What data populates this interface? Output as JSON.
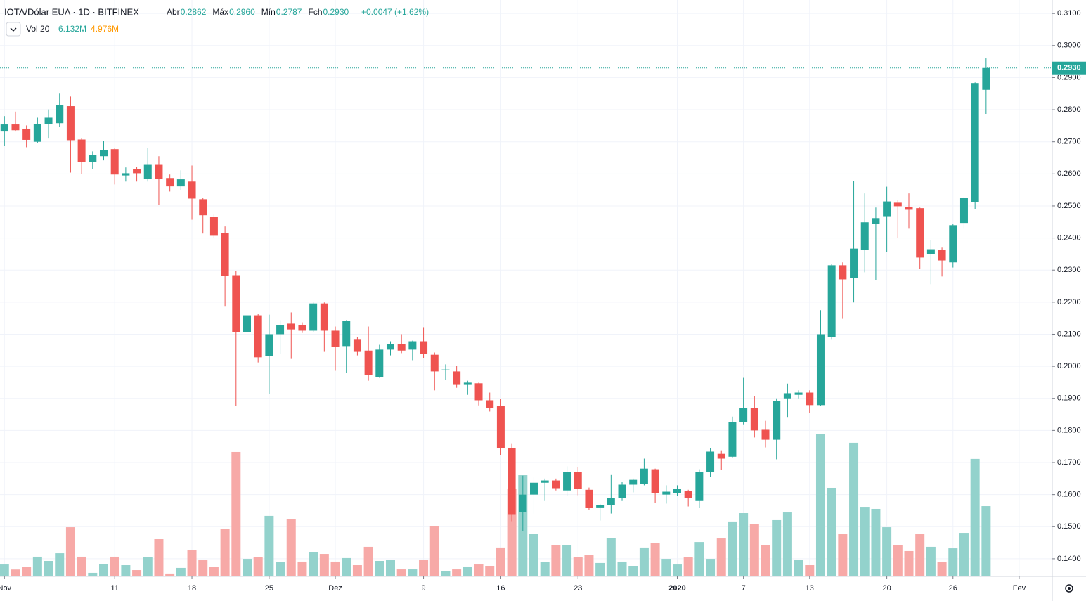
{
  "chart_data": {
    "type": "candlestick",
    "title": "IOTA/Dólar EUA · 1D · BITFINEX",
    "ohlc_header": [
      {
        "name": "Abr",
        "value": "0.2862"
      },
      {
        "name": "Máx",
        "value": "0.2960"
      },
      {
        "name": "Mín",
        "value": "0.2787"
      },
      {
        "name": "Fch",
        "value": "0.2930"
      }
    ],
    "change": "+0.0047 (+1.62%)",
    "volume_legend": {
      "name": "Vol 20",
      "values": [
        {
          "value": 6.132,
          "label": "6.132M",
          "color": "#26a69a"
        },
        {
          "value": 4.976,
          "label": "4.976M",
          "color": "#ff9800"
        }
      ]
    },
    "last_price": {
      "value": 0.293,
      "label": "0.2930"
    },
    "up_color": "#26a69a",
    "down_color": "#ef5350",
    "volume_up_color": "#93d2cc",
    "volume_down_color": "#f7a9a7",
    "open": [
      0.2732,
      0.2754,
      0.2741,
      0.27,
      0.2755,
      0.2758,
      0.2811,
      0.2707,
      0.2637,
      0.2655,
      0.2677,
      0.2595,
      0.2615,
      0.2585,
      0.2628,
      0.2587,
      0.2561,
      0.2576,
      0.2521,
      0.2466,
      0.2416,
      0.2284,
      0.2107,
      0.2159,
      0.2032,
      0.21,
      0.2133,
      0.2129,
      0.2111,
      0.2196,
      0.2111,
      0.2063,
      0.2085,
      0.2049,
      0.1966,
      0.2052,
      0.2069,
      0.2052,
      0.2078,
      0.2036,
      0.1988,
      0.1984,
      0.1942,
      0.1947,
      0.1894,
      0.1876,
      0.1745,
      0.1545,
      0.16,
      0.1637,
      0.1644,
      0.1613,
      0.167,
      0.1615,
      0.156,
      0.1567,
      0.1589,
      0.1631,
      0.1633,
      0.1679,
      0.16,
      0.1604,
      0.1611,
      0.158,
      0.167,
      0.1727,
      0.1718,
      0.1826,
      0.187,
      0.1802,
      0.1771,
      0.19,
      0.1911,
      0.1918,
      0.1879,
      0.2091,
      0.2315,
      0.2275,
      0.2363,
      0.2444,
      0.2468,
      0.251,
      0.2497,
      0.2493,
      0.235,
      0.2363,
      0.2324,
      0.2447,
      0.2512,
      0.2862
    ],
    "high": [
      0.278,
      0.2794,
      0.2751,
      0.2775,
      0.2801,
      0.285,
      0.2841,
      0.2712,
      0.267,
      0.2703,
      0.2681,
      0.262,
      0.2622,
      0.2681,
      0.2655,
      0.2598,
      0.2611,
      0.2626,
      0.2525,
      0.2473,
      0.2436,
      0.2297,
      0.2166,
      0.2164,
      0.2161,
      0.2144,
      0.2168,
      0.2137,
      0.2199,
      0.2199,
      0.2124,
      0.2144,
      0.2091,
      0.2124,
      0.2067,
      0.2078,
      0.21,
      0.208,
      0.2122,
      0.2043,
      0.2006,
      0.2001,
      0.1955,
      0.1949,
      0.1918,
      0.1898,
      0.176,
      0.1659,
      0.1653,
      0.165,
      0.165,
      0.1688,
      0.1686,
      0.1622,
      0.1571,
      0.1661,
      0.164,
      0.165,
      0.1712,
      0.1681,
      0.1629,
      0.1629,
      0.1615,
      0.1679,
      0.1745,
      0.1738,
      0.1843,
      0.1964,
      0.1907,
      0.183,
      0.19,
      0.1946,
      0.1925,
      0.1925,
      0.2175,
      0.2319,
      0.2324,
      0.2578,
      0.2539,
      0.2495,
      0.256,
      0.2519,
      0.2539,
      0.2495,
      0.2394,
      0.237,
      0.2444,
      0.2528,
      0.2885,
      0.296
    ],
    "low": [
      0.2687,
      0.2732,
      0.2683,
      0.2696,
      0.271,
      0.2747,
      0.2604,
      0.26,
      0.2615,
      0.2642,
      0.2567,
      0.2576,
      0.2576,
      0.2576,
      0.2503,
      0.2545,
      0.255,
      0.2457,
      0.2414,
      0.24,
      0.2186,
      0.1876,
      0.2041,
      0.2012,
      0.1914,
      0.2039,
      0.2023,
      0.2104,
      0.2107,
      0.2045,
      0.1986,
      0.1979,
      0.2034,
      0.1955,
      0.1964,
      0.2034,
      0.2041,
      0.2019,
      0.2025,
      0.1925,
      0.1958,
      0.1933,
      0.1911,
      0.1878,
      0.1859,
      0.1723,
      0.1517,
      0.1486,
      0.1541,
      0.158,
      0.1613,
      0.1596,
      0.1598,
      0.1552,
      0.1519,
      0.1541,
      0.158,
      0.1607,
      0.1629,
      0.1574,
      0.1572,
      0.1596,
      0.1563,
      0.1558,
      0.1655,
      0.1677,
      0.1716,
      0.1819,
      0.1778,
      0.1747,
      0.171,
      0.1842,
      0.19,
      0.1854,
      0.1876,
      0.2085,
      0.2148,
      0.2199,
      0.2293,
      0.2269,
      0.2357,
      0.24,
      0.2429,
      0.2304,
      0.2256,
      0.228,
      0.2308,
      0.2429,
      0.249,
      0.2787
    ],
    "close": [
      0.2754,
      0.2736,
      0.2706,
      0.2755,
      0.2775,
      0.2815,
      0.2705,
      0.2637,
      0.2659,
      0.2675,
      0.2598,
      0.2602,
      0.2602,
      0.2628,
      0.2585,
      0.2561,
      0.2583,
      0.2523,
      0.2471,
      0.2407,
      0.2282,
      0.2107,
      0.2159,
      0.2028,
      0.21,
      0.2129,
      0.2115,
      0.2111,
      0.2196,
      0.2111,
      0.2061,
      0.2142,
      0.2045,
      0.1973,
      0.2052,
      0.2069,
      0.2049,
      0.2078,
      0.2039,
      0.1984,
      0.199,
      0.1942,
      0.1949,
      0.1894,
      0.187,
      0.1745,
      0.1539,
      0.16,
      0.1637,
      0.1644,
      0.162,
      0.167,
      0.1618,
      0.1558,
      0.1567,
      0.1589,
      0.1631,
      0.1646,
      0.1681,
      0.1604,
      0.1609,
      0.1618,
      0.1589,
      0.167,
      0.1734,
      0.1712,
      0.1826,
      0.187,
      0.18,
      0.1771,
      0.1892,
      0.1916,
      0.1918,
      0.1879,
      0.21,
      0.2315,
      0.2271,
      0.2367,
      0.2449,
      0.2462,
      0.2514,
      0.2499,
      0.2488,
      0.2339,
      0.2365,
      0.233,
      0.244,
      0.2525,
      0.2883,
      0.293
    ],
    "volume": [
      1.04,
      0.6,
      0.85,
      1.72,
      1.35,
      2.02,
      4.29,
      1.72,
      0.31,
      1.1,
      1.72,
      0.98,
      0.55,
      1.66,
      3.25,
      0.25,
      0.74,
      2.27,
      1.41,
      0.8,
      4.17,
      10.86,
      1.53,
      1.66,
      5.28,
      1.23,
      5.03,
      1.29,
      2.09,
      1.96,
      1.29,
      1.6,
      0.98,
      2.58,
      1.35,
      1.47,
      0.61,
      0.61,
      1.47,
      4.36,
      0.43,
      0.61,
      0.86,
      1.04,
      0.92,
      2.52,
      7.67,
      8.83,
      3.74,
      1.23,
      2.76,
      2.7,
      1.66,
      1.84,
      1.17,
      3.37,
      1.29,
      0.92,
      2.52,
      2.94,
      1.53,
      1.04,
      1.66,
      3.0,
      1.53,
      3.31,
      4.79,
      5.52,
      4.6,
      2.76,
      4.91,
      5.58,
      1.41,
      0.98,
      12.39,
      7.73,
      3.68,
      11.66,
      6.07,
      5.89,
      4.29,
      2.76,
      2.21,
      3.68,
      2.58,
      1.23,
      2.45,
      3.8,
      10.25,
      6.132
    ],
    "xlim": [
      -0.4,
      95
    ],
    "xticks": [
      {
        "value": 0,
        "label": "Nov"
      },
      {
        "value": 10,
        "label": "11"
      },
      {
        "value": 17,
        "label": "18"
      },
      {
        "value": 24,
        "label": "25"
      },
      {
        "value": 30,
        "label": "Dez"
      },
      {
        "value": 38,
        "label": "9"
      },
      {
        "value": 45,
        "label": "16"
      },
      {
        "value": 52,
        "label": "23"
      },
      {
        "value": 61,
        "label": "2020"
      },
      {
        "value": 67,
        "label": "7"
      },
      {
        "value": 73,
        "label": "13"
      },
      {
        "value": 80,
        "label": "20"
      },
      {
        "value": 86,
        "label": "26"
      },
      {
        "value": 92,
        "label": "Fev"
      }
    ],
    "ylim": [
      0.1345,
      0.3142
    ],
    "yticks": [
      {
        "value": 0.14,
        "label": "0.1400"
      },
      {
        "value": 0.15,
        "label": "0.1500"
      },
      {
        "value": 0.16,
        "label": "0.1600"
      },
      {
        "value": 0.17,
        "label": "0.1700"
      },
      {
        "value": 0.18,
        "label": "0.1800"
      },
      {
        "value": 0.19,
        "label": "0.1900"
      },
      {
        "value": 0.2,
        "label": "0.2000"
      },
      {
        "value": 0.21,
        "label": "0.2100"
      },
      {
        "value": 0.22,
        "label": "0.2200"
      },
      {
        "value": 0.23,
        "label": "0.2300"
      },
      {
        "value": 0.24,
        "label": "0.2400"
      },
      {
        "value": 0.25,
        "label": "0.2500"
      },
      {
        "value": 0.26,
        "label": "0.2600"
      },
      {
        "value": 0.27,
        "label": "0.2700"
      },
      {
        "value": 0.28,
        "label": "0.2800"
      },
      {
        "value": 0.29,
        "label": "0.2900"
      },
      {
        "value": 0.3,
        "label": "0.3000"
      },
      {
        "value": 0.31,
        "label": "0.3100"
      }
    ],
    "volume_ylim": [
      0,
      50.3
    ],
    "grid": true
  }
}
